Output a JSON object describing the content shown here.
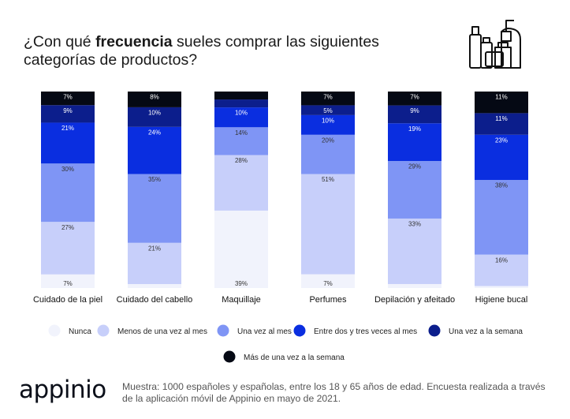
{
  "title": {
    "prefix": "¿Con qué ",
    "bold": "frecuencia",
    "suffix": " sueles comprar las siguientes categorías de productos?"
  },
  "icon": "cosmetics-bottles-icon",
  "chart_data": {
    "type": "bar",
    "stacked": true,
    "normalized": true,
    "categories": [
      "Cuidado de la piel",
      "Cuidado del cabello",
      "Maquillaje",
      "Perfumes",
      "Depilación y afeitado",
      "Higiene bucal"
    ],
    "series": [
      {
        "name": "Nunca",
        "color": "#f1f3fc",
        "values": [
          7,
          2,
          39,
          7,
          2,
          1
        ],
        "labels": [
          "7%",
          "",
          "39%",
          "7%",
          "",
          ""
        ]
      },
      {
        "name": "Menos de una vez al mes",
        "color": "#c7cffa",
        "values": [
          27,
          21,
          28,
          51,
          33,
          16
        ],
        "labels": [
          "27%",
          "21%",
          "28%",
          "51%",
          "33%",
          "16%"
        ]
      },
      {
        "name": "Una vez al mes",
        "color": "#7f95f5",
        "values": [
          30,
          35,
          14,
          20,
          29,
          38
        ],
        "labels": [
          "30%",
          "35%",
          "14%",
          "20%",
          "29%",
          "38%"
        ]
      },
      {
        "name": "Entre dos y tres veces al mes",
        "color": "#0a2ee0",
        "values": [
          21,
          24,
          10,
          10,
          19,
          23
        ],
        "labels": [
          "21%",
          "24%",
          "10%",
          "10%",
          "19%",
          "23%"
        ]
      },
      {
        "name": "Una vez a la semana",
        "color": "#0c1e8c",
        "values": [
          9,
          10,
          4,
          5,
          9,
          11
        ],
        "labels": [
          "9%",
          "10%",
          "",
          "5%",
          "9%",
          "11%"
        ]
      },
      {
        "name": "Más de una vez a la semana",
        "color": "#050914",
        "values": [
          7,
          8,
          4,
          7,
          7,
          11
        ],
        "labels": [
          "7%",
          "8%",
          "",
          "7%",
          "7%",
          "11%"
        ]
      }
    ],
    "ylim": [
      0,
      100
    ]
  },
  "footer": {
    "logo": "appinio",
    "note": "Muestra: 1000 españoles y españolas, entre los 18 y 65 años de edad. Encuesta realizada a través de la aplicación móvil de Appinio en mayo de 2021."
  }
}
